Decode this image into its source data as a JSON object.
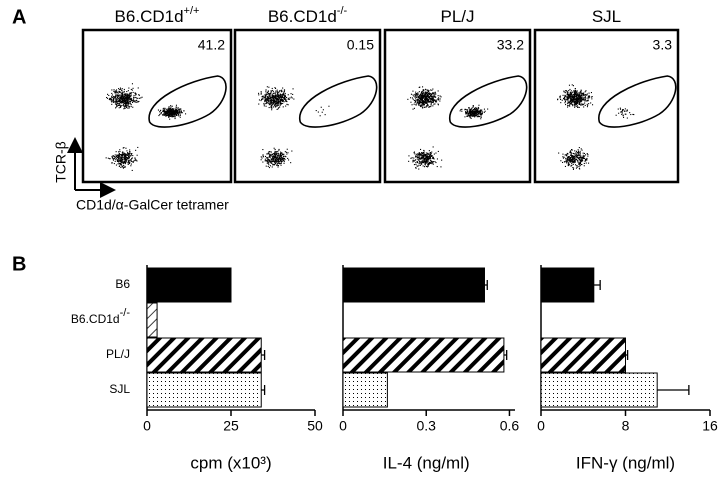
{
  "panel_a": {
    "label": "A",
    "plots": [
      {
        "title": {
          "text": "B6.CD1d",
          "sup": "+/+"
        },
        "value": "41.2"
      },
      {
        "title": {
          "text": "B6.CD1d",
          "sup": "-/-"
        },
        "value": "0.15"
      },
      {
        "title": {
          "text": "PL/J"
        },
        "value": "33.2"
      },
      {
        "title": {
          "text": "SJL"
        },
        "value": "3.3"
      }
    ],
    "y_label": "TCR-β",
    "x_label": "CD1d/α-GalCer tetramer"
  },
  "panel_b": {
    "label": "B"
  },
  "chart_data": [
    {
      "type": "bar",
      "orientation": "horizontal",
      "categories": [
        "B6",
        {
          "text": "B6.CD1d",
          "sup": "-/-"
        },
        "PL/J",
        "SJL"
      ],
      "patterns": [
        "solid",
        "thin-hatch",
        "thick-hatch",
        "dots"
      ],
      "values": [
        25,
        3,
        34,
        34
      ],
      "errors": [
        0,
        0,
        1,
        1
      ],
      "xlim": [
        0,
        50
      ],
      "xticks": [
        0,
        25,
        50
      ],
      "x_label": "cpm (x10³)"
    },
    {
      "type": "bar",
      "orientation": "horizontal",
      "patterns": [
        "solid",
        "thin-hatch",
        "thick-hatch",
        "dots"
      ],
      "values": [
        0.51,
        0,
        0.58,
        0.16
      ],
      "errors": [
        0.01,
        0,
        0.01,
        0
      ],
      "xlim": [
        0,
        0.62
      ],
      "xticks": [
        0,
        0.3,
        0.6
      ],
      "x_label": "IL-4 (ng/ml)"
    },
    {
      "type": "bar",
      "orientation": "horizontal",
      "patterns": [
        "solid",
        "thin-hatch",
        "thick-hatch",
        "dots"
      ],
      "values": [
        5,
        0,
        8,
        11
      ],
      "errors": [
        0.6,
        0,
        0.2,
        3
      ],
      "xlim": [
        0,
        16
      ],
      "xticks": [
        0,
        8,
        16
      ],
      "x_label": "IFN-γ (ng/ml)"
    }
  ]
}
